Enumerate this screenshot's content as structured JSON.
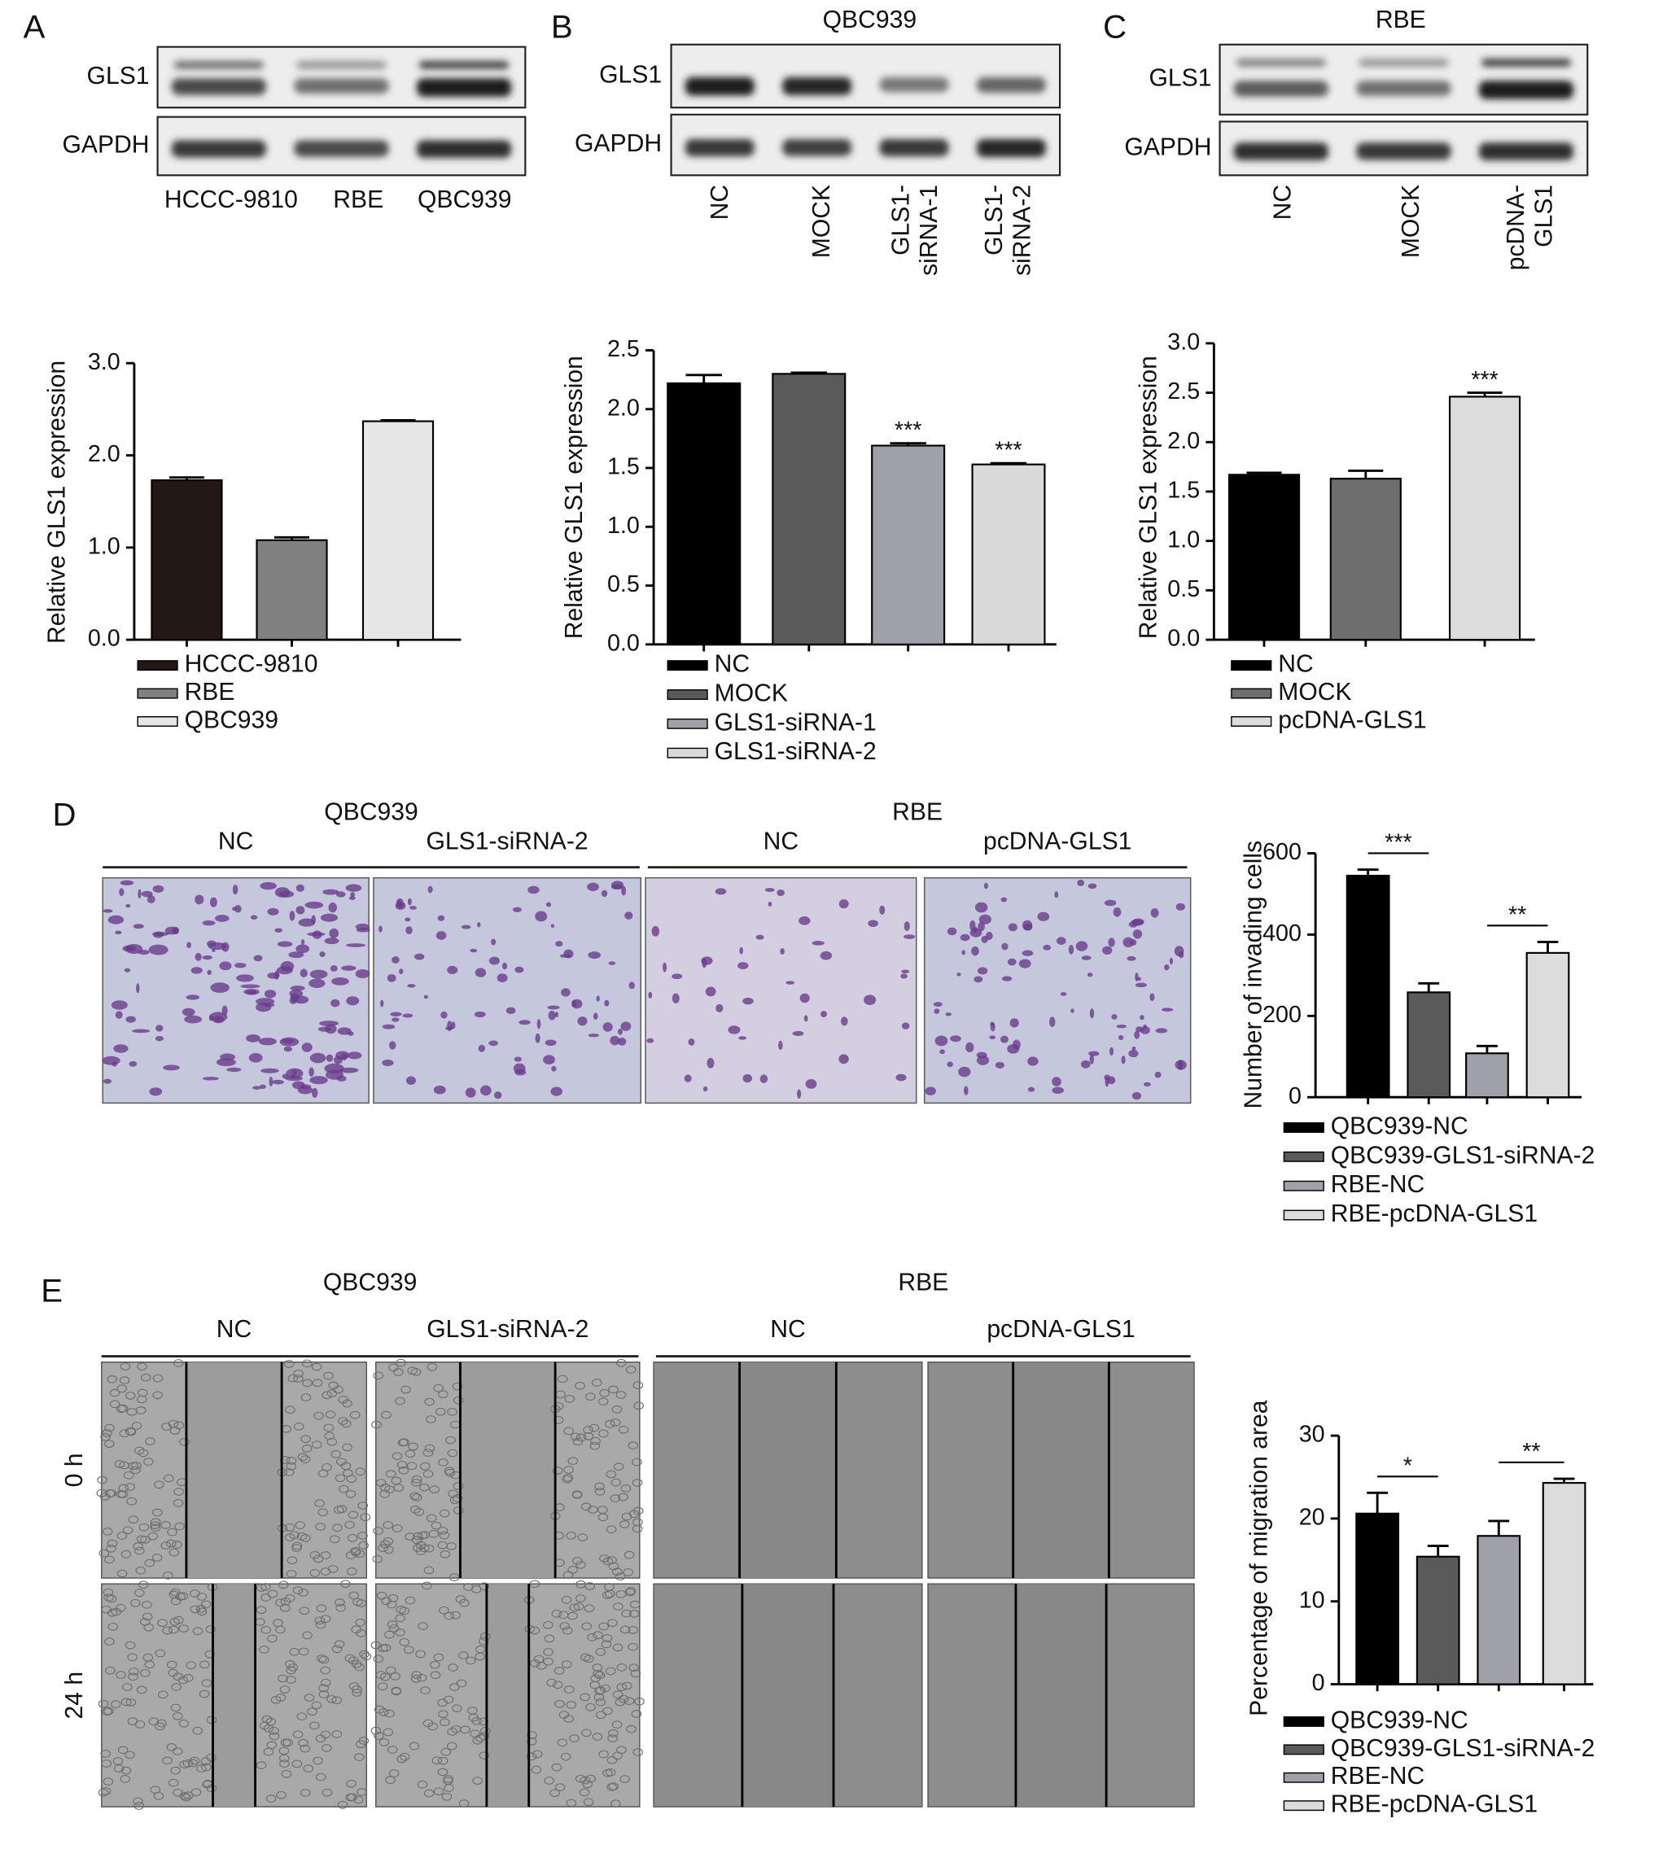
{
  "figure": {
    "panels": [
      "A",
      "B",
      "C",
      "D",
      "E"
    ],
    "blots": [
      {
        "rows": [
          "GLS1",
          "GAPDH"
        ],
        "lanes": [
          [
            "HCCC-9810"
          ],
          [
            "RBE"
          ],
          [
            "QBC939"
          ]
        ]
      },
      {
        "title": "QBC939",
        "rows": [
          "GLS1",
          "GAPDH"
        ],
        "lanes": [
          [
            "NC"
          ],
          [
            "MOCK"
          ],
          [
            "GLS1-",
            "siRNA-1"
          ],
          [
            "GLS1-",
            "siRNA-2"
          ]
        ]
      },
      {
        "title": "RBE",
        "rows": [
          "GLS1",
          "GAPDH"
        ],
        "lanes": [
          [
            "NC"
          ],
          [
            "MOCK"
          ],
          [
            "pcDNA-",
            "GLS1"
          ]
        ]
      }
    ],
    "assays": [
      {
        "groups": [
          {
            "title": "QBC939",
            "conditions": [
              "NC",
              "GLS1-siRNA-2"
            ]
          },
          {
            "title": "RBE",
            "conditions": [
              "NC",
              "pcDNA-GLS1"
            ]
          }
        ]
      },
      {
        "groups": [
          {
            "title": "QBC939",
            "conditions": [
              "NC",
              "GLS1-siRNA-2"
            ]
          },
          {
            "title": "RBE",
            "conditions": [
              "NC",
              "pcDNA-GLS1"
            ]
          }
        ],
        "timepoints": [
          "0 h",
          "24 h"
        ]
      }
    ]
  },
  "chart_data": [
    {
      "type": "bar",
      "y_label": "Relative GLS1 expression",
      "categories": [
        "HCCC-9810",
        "RBE",
        "QBC939"
      ],
      "values": [
        1.73,
        1.08,
        2.37
      ],
      "errors": [
        0.03,
        0.03,
        0.01
      ],
      "colors": [
        "#231816",
        "#808080",
        "#e6e6e6"
      ],
      "ylim": [
        0,
        3
      ],
      "yticks": [
        {
          "value": 0,
          "label": "0.0"
        },
        {
          "value": 1,
          "label": "1.0"
        },
        {
          "value": 2,
          "label": "2.0"
        },
        {
          "value": 3,
          "label": "3.0"
        }
      ]
    },
    {
      "type": "bar",
      "y_label": "Relative GLS1 expression",
      "categories": [
        "NC",
        "MOCK",
        "GLS1-siRNA-1",
        "GLS1-siRNA-2"
      ],
      "values": [
        2.22,
        2.3,
        1.69,
        1.53
      ],
      "errors": [
        0.07,
        0.01,
        0.02,
        0.01
      ],
      "colors": [
        "#000000",
        "#5a5a5a",
        "#a0a0aa",
        "#d9d9d9"
      ],
      "annotations": [
        null,
        null,
        "***",
        "***"
      ],
      "ylim": [
        0,
        2.5
      ],
      "yticks": [
        {
          "value": 0,
          "label": "0.0"
        },
        0.5,
        {
          "value": 1,
          "label": "1.0"
        },
        1.5,
        {
          "value": 2,
          "label": "2.0"
        },
        2.5
      ]
    },
    {
      "type": "bar",
      "y_label": "Relative GLS1 expression",
      "categories": [
        "NC",
        "MOCK",
        "pcDNA-GLS1"
      ],
      "values": [
        1.67,
        1.63,
        2.46
      ],
      "errors": [
        0.02,
        0.08,
        0.04
      ],
      "colors": [
        "#000000",
        "#6e6e6e",
        "#dcdcdc"
      ],
      "annotations": [
        null,
        null,
        "***"
      ],
      "ylim": [
        0,
        3
      ],
      "yticks": [
        {
          "value": 0,
          "label": "0.0"
        },
        0.5,
        {
          "value": 1,
          "label": "1.0"
        },
        1.5,
        {
          "value": 2,
          "label": "2.0"
        },
        2.5,
        {
          "value": 3,
          "label": "3.0"
        }
      ]
    },
    {
      "type": "bar",
      "y_label": "Number of invading cells",
      "categories": [
        "QBC939-NC",
        "QBC939-GLS1-siRNA-2",
        "RBE-NC",
        "RBE-pcDNA-GLS1"
      ],
      "values": [
        545,
        258,
        108,
        355
      ],
      "errors": [
        15,
        22,
        18,
        27
      ],
      "colors": [
        "#000000",
        "#5a5a5a",
        "#a0a0aa",
        "#dcdcdc"
      ],
      "brackets": [
        "***",
        null,
        "**",
        null
      ],
      "ylim": [
        0,
        600
      ],
      "yticks": [
        0,
        200,
        400,
        600
      ]
    },
    {
      "type": "bar",
      "y_label": "Percentage of migration area",
      "categories": [
        "QBC939-NC",
        "QBC939-GLS1-siRNA-2",
        "RBE-NC",
        "RBE-pcDNA-GLS1"
      ],
      "values": [
        20.6,
        15.4,
        17.9,
        24.3
      ],
      "errors": [
        2.5,
        1.3,
        1.8,
        0.5
      ],
      "colors": [
        "#000000",
        "#5a5a5a",
        "#a0a0aa",
        "#dcdcdc"
      ],
      "brackets": [
        "*",
        null,
        "**",
        null
      ],
      "ylim": [
        0,
        30
      ],
      "yticks": [
        0,
        10,
        20,
        30
      ]
    }
  ]
}
